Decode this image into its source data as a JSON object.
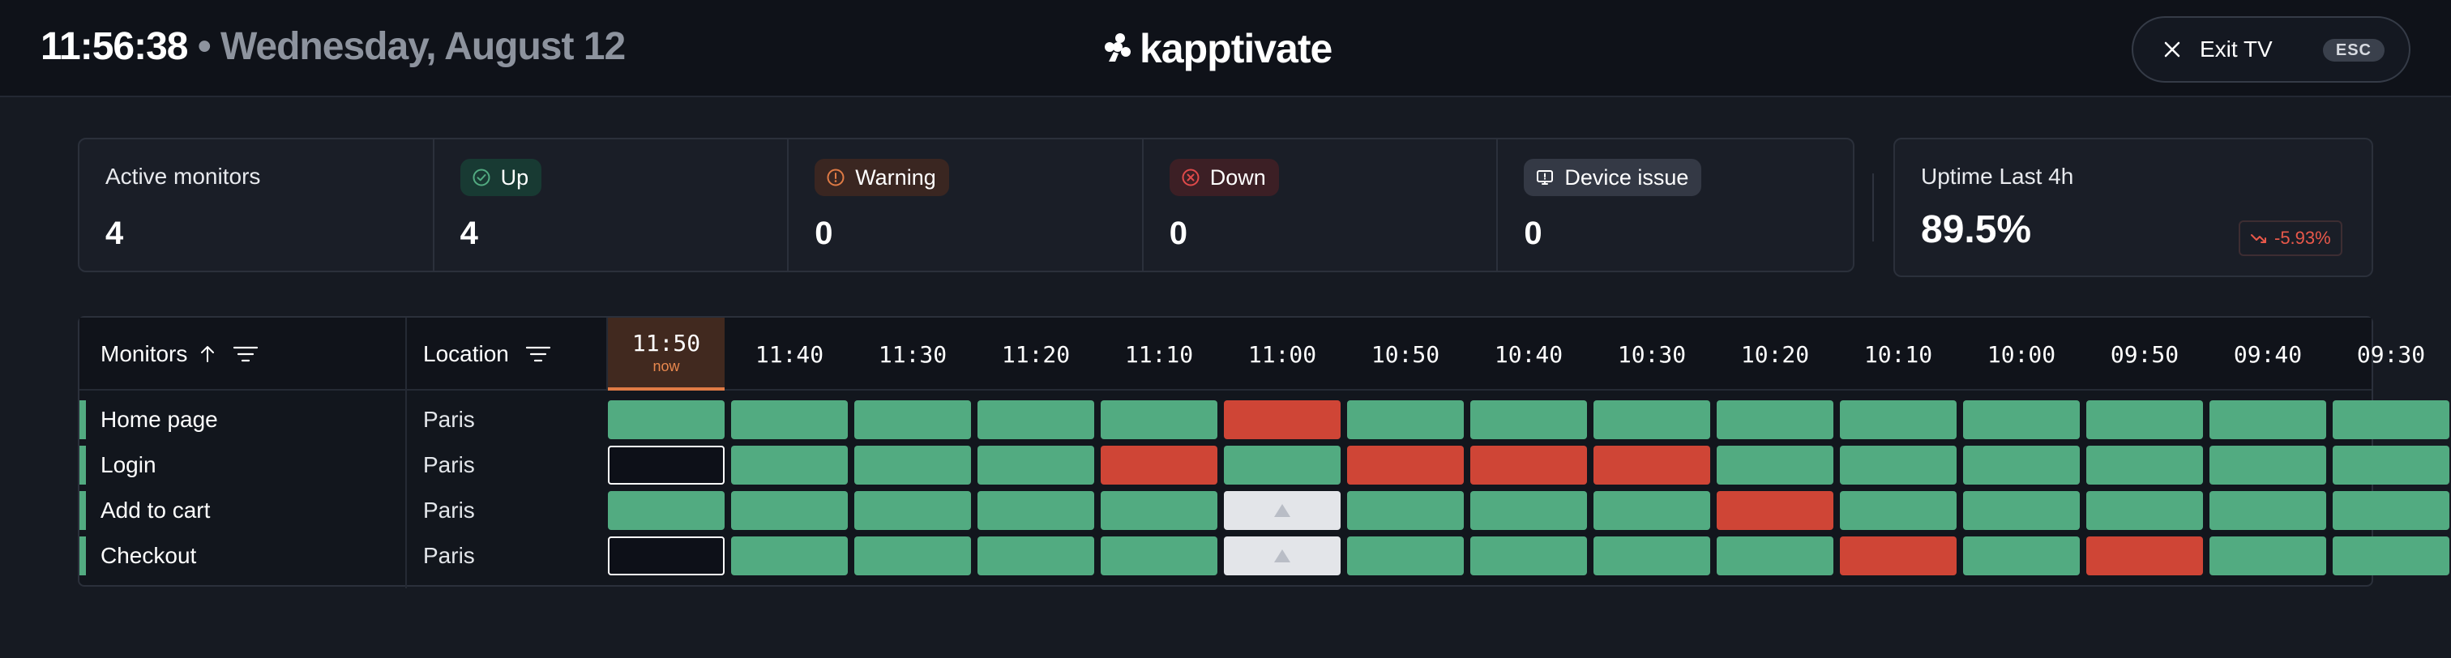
{
  "header": {
    "time": "11:56:38",
    "date": " • Wednesday, August 12",
    "brand": "kapptivate",
    "exit_label": "Exit TV",
    "esc_label": "ESC"
  },
  "stats": {
    "active": {
      "label": "Active monitors",
      "value": "4"
    },
    "up": {
      "label": "Up",
      "value": "4",
      "icon": "check-circle-icon",
      "color": "#52ab81"
    },
    "warning": {
      "label": "Warning",
      "value": "0",
      "icon": "alert-circle-icon",
      "color": "#e07b45"
    },
    "down": {
      "label": "Down",
      "value": "0",
      "icon": "x-circle-icon",
      "color": "#e04a4a"
    },
    "device": {
      "label": "Device issue",
      "value": "0",
      "icon": "device-icon",
      "color": "#d7dae0"
    }
  },
  "uptime": {
    "label": "Uptime Last 4h",
    "value": "89.5%",
    "delta": "-5.93%",
    "delta_icon": "trend-down-icon"
  },
  "table": {
    "col_monitors": "Monitors",
    "col_location": "Location",
    "now_label": "now",
    "times": [
      "11:50",
      "11:40",
      "11:30",
      "11:20",
      "11:10",
      "11:00",
      "10:50",
      "10:40",
      "10:30",
      "10:20",
      "10:10",
      "10:00",
      "09:50",
      "09:40",
      "09:30"
    ],
    "rows": [
      {
        "name": "Home page",
        "location": "Paris",
        "statuses": [
          "up",
          "up",
          "up",
          "up",
          "up",
          "down",
          "up",
          "up",
          "up",
          "up",
          "up",
          "up",
          "up",
          "up",
          "up"
        ]
      },
      {
        "name": "Login",
        "location": "Paris",
        "statuses": [
          "pending",
          "up",
          "up",
          "up",
          "down",
          "up",
          "down",
          "down",
          "down",
          "up",
          "up",
          "up",
          "up",
          "up",
          "up"
        ]
      },
      {
        "name": "Add to cart",
        "location": "Paris",
        "statuses": [
          "up",
          "up",
          "up",
          "up",
          "up",
          "device",
          "up",
          "up",
          "up",
          "down",
          "up",
          "up",
          "up",
          "up",
          "up"
        ]
      },
      {
        "name": "Checkout",
        "location": "Paris",
        "statuses": [
          "pending",
          "up",
          "up",
          "up",
          "up",
          "device",
          "up",
          "up",
          "up",
          "up",
          "down",
          "up",
          "down",
          "up",
          "up"
        ]
      }
    ]
  },
  "colors": {
    "up": "#52ab81",
    "down": "#cf4536",
    "device": "#e3e5e9",
    "now": "#e07b45"
  }
}
